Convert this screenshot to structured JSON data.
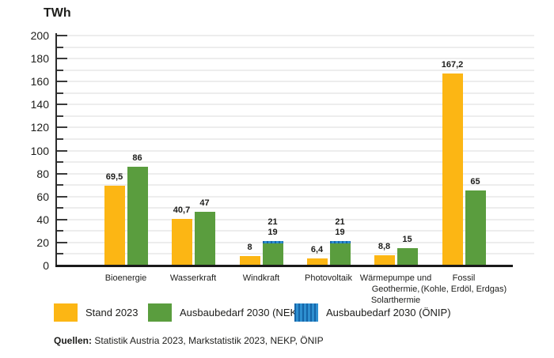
{
  "title": "TWh",
  "legend": [
    {
      "key": "stand",
      "label": "Stand 2023"
    },
    {
      "key": "nekp",
      "label": "Ausbaubedarf 2030 (NEKP)"
    },
    {
      "key": "oenip",
      "label": "Ausbaubedarf 2030 (ÖNIP)"
    }
  ],
  "colors": {
    "stand": "#FCB614",
    "nekp": "#5A9D3E",
    "oenip_base": "#2E8FD0",
    "oenip_stripe": "#1565A8",
    "grid": "#EDEDED",
    "axis": "#1A1A1A",
    "text": "#1D1D1B"
  },
  "sources": {
    "label": "Quellen:",
    "text": " Statistik Austria 2023, Markstatistik 2023, NEKP, ÖNIP"
  },
  "chart_data": {
    "type": "bar",
    "title": "TWh",
    "ylabel": "TWh",
    "xlabel": "",
    "ylim": [
      0,
      200
    ],
    "ytick_step": 20,
    "grid_step": 10,
    "grid": true,
    "legend_position": "bottom",
    "categories": [
      {
        "name": "Bioenergie",
        "lines": [
          "Bioenergie"
        ],
        "stand": 69.5,
        "stand_label": "69,5",
        "nekp": 86,
        "nekp_label": "86",
        "oenip": null,
        "oenip_label": null
      },
      {
        "name": "Wasserkraft",
        "lines": [
          "Wasserkraft"
        ],
        "stand": 40.7,
        "stand_label": "40,7",
        "nekp": 47,
        "nekp_label": "47",
        "oenip": null,
        "oenip_label": null
      },
      {
        "name": "Windkraft",
        "lines": [
          "Windkraft"
        ],
        "stand": 8,
        "stand_label": "8",
        "nekp": 19,
        "nekp_label": "19",
        "oenip": 21,
        "oenip_label": "21"
      },
      {
        "name": "Photovoltaik",
        "lines": [
          "Photovoltaik"
        ],
        "stand": 6.4,
        "stand_label": "6,4",
        "nekp": 19,
        "nekp_label": "19",
        "oenip": 21,
        "oenip_label": "21"
      },
      {
        "name": "Wärmepumpe und Geothermie, Solarthermie",
        "lines": [
          "Wärmepumpe und",
          "Geothermie,",
          "Solarthermie"
        ],
        "stand": 8.8,
        "stand_label": "8,8",
        "nekp": 15,
        "nekp_label": "15",
        "oenip": null,
        "oenip_label": null
      },
      {
        "name": "Fossil (Kohle, Erdöl, Erdgas)",
        "lines": [
          "Fossil",
          "(Kohle, Erdöl, Erdgas)"
        ],
        "stand": 167.2,
        "stand_label": "167,2",
        "nekp": 65,
        "nekp_label": "65",
        "oenip": null,
        "oenip_label": null
      }
    ],
    "series": [
      {
        "name": "Stand 2023",
        "key": "stand",
        "values": [
          69.5,
          40.7,
          8,
          6.4,
          8.8,
          167.2
        ]
      },
      {
        "name": "Ausbaubedarf 2030 (NEKP)",
        "key": "nekp",
        "values": [
          86,
          47,
          19,
          19,
          15,
          65
        ]
      },
      {
        "name": "Ausbaubedarf 2030 (ÖNIP)",
        "key": "oenip",
        "values": [
          null,
          null,
          21,
          21,
          null,
          null
        ]
      }
    ]
  }
}
